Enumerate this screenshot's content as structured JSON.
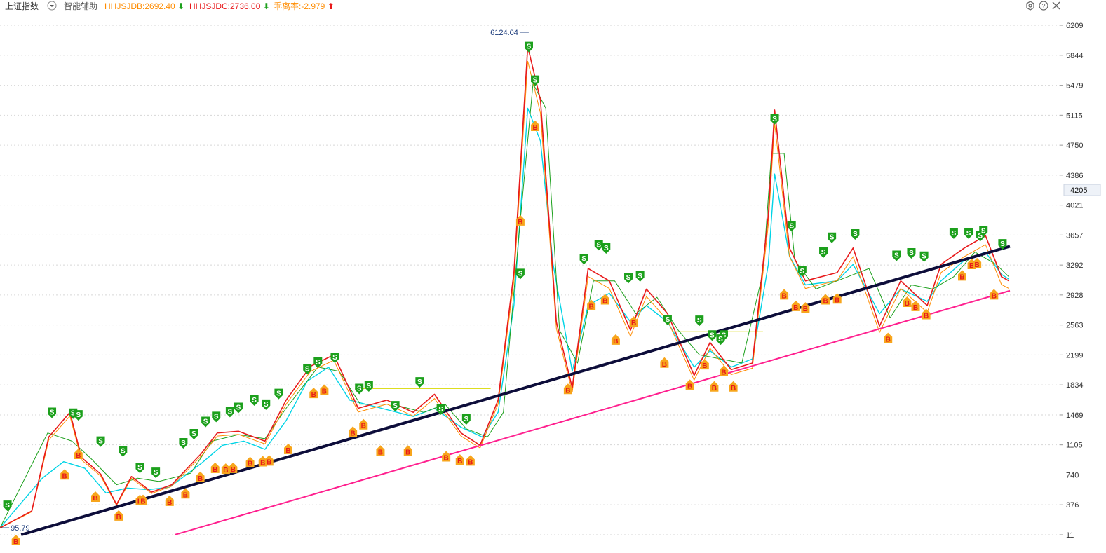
{
  "header": {
    "title": "上证指数",
    "dropdown_icon": "chevron-down-icon",
    "assist_label": "智能辅助",
    "indicators": [
      {
        "name": "HHJSJDB",
        "value": "2692.40",
        "direction": "down",
        "color": "#ff8c00",
        "text": "HHJSJDB:2692.40"
      },
      {
        "name": "HHJSJDC",
        "value": "2736.00",
        "direction": "down",
        "color": "#e8191b",
        "text": "HHJSJDC:2736.00"
      },
      {
        "name": "乖离率",
        "value": "-2.979",
        "direction": "up",
        "color": "#ff8c00",
        "text": "乖离率:-2.979"
      }
    ],
    "arrow_down_color": "#1ca01c",
    "arrow_up_color": "#e8191b",
    "window_icons": [
      "settings-icon",
      "help-icon",
      "close-icon"
    ]
  },
  "chart_data": {
    "type": "line",
    "title": "上证指数",
    "xlabel": "",
    "ylabel": "",
    "ylim": [
      11,
      6209
    ],
    "y_ticks": [
      "6209",
      "5844",
      "5479",
      "5115",
      "4750",
      "4386",
      "4021",
      "3657",
      "3292",
      "2928",
      "2563",
      "2199",
      "1834",
      "1469",
      "1105",
      "740",
      "376",
      "11"
    ],
    "y_tick_values": [
      6209,
      5844,
      5479,
      5115,
      4750,
      4386,
      4021,
      3657,
      3292,
      2928,
      2563,
      2199,
      1834,
      1469,
      1105,
      740,
      376,
      11
    ],
    "current_value_label": "4205",
    "current_value": 4205,
    "grid": true,
    "annotations": [
      {
        "text": "6124.04",
        "x": 0.493,
        "y": 6124.04
      },
      {
        "text": "95.79",
        "x": 0.006,
        "y": 95.79
      }
    ],
    "colors": {
      "price": "#e8191b",
      "low": "#00d4e6",
      "mid": "#ff8c00",
      "envelope": "#1ca01c",
      "support": "#ff1f8e",
      "trend": "#0d0d3a",
      "flat": "#d8d800",
      "grid": "#d6d6d6"
    },
    "series": [
      {
        "values": [
          [
            0.0,
            95.79
          ],
          [
            0.03,
            300
          ],
          [
            0.046,
            1200
          ],
          [
            0.066,
            1500
          ],
          [
            0.077,
            950
          ],
          [
            0.095,
            750
          ],
          [
            0.11,
            380
          ],
          [
            0.124,
            720
          ],
          [
            0.143,
            530
          ],
          [
            0.162,
            620
          ],
          [
            0.19,
            1000
          ],
          [
            0.205,
            1250
          ],
          [
            0.225,
            1270
          ],
          [
            0.25,
            1150
          ],
          [
            0.27,
            1650
          ],
          [
            0.293,
            2060
          ],
          [
            0.315,
            2200
          ],
          [
            0.338,
            1550
          ],
          [
            0.365,
            1650
          ],
          [
            0.39,
            1500
          ],
          [
            0.41,
            1720
          ],
          [
            0.435,
            1250
          ],
          [
            0.453,
            1100
          ],
          [
            0.47,
            1650
          ],
          [
            0.485,
            3200
          ],
          [
            0.498,
            5950
          ],
          [
            0.51,
            5300
          ],
          [
            0.525,
            2600
          ],
          [
            0.54,
            1800
          ],
          [
            0.555,
            3250
          ],
          [
            0.575,
            3100
          ],
          [
            0.595,
            2500
          ],
          [
            0.61,
            3000
          ],
          [
            0.63,
            2700
          ],
          [
            0.655,
            1950
          ],
          [
            0.67,
            2350
          ],
          [
            0.69,
            2020
          ],
          [
            0.71,
            2100
          ],
          [
            0.725,
            3900
          ],
          [
            0.731,
            5178
          ],
          [
            0.745,
            3500
          ],
          [
            0.76,
            3100
          ],
          [
            0.79,
            3200
          ],
          [
            0.805,
            3500
          ],
          [
            0.83,
            2550
          ],
          [
            0.85,
            3100
          ],
          [
            0.875,
            2800
          ],
          [
            0.888,
            3300
          ],
          [
            0.91,
            3500
          ],
          [
            0.93,
            3650
          ],
          [
            0.945,
            3150
          ],
          [
            0.952,
            3100
          ]
        ]
      },
      {
        "values": [
          [
            0.0,
            95.79
          ],
          [
            0.04,
            700
          ],
          [
            0.06,
            900
          ],
          [
            0.08,
            820
          ],
          [
            0.1,
            520
          ],
          [
            0.12,
            580
          ],
          [
            0.14,
            560
          ],
          [
            0.16,
            590
          ],
          [
            0.19,
            880
          ],
          [
            0.21,
            1100
          ],
          [
            0.23,
            1150
          ],
          [
            0.25,
            1050
          ],
          [
            0.27,
            1400
          ],
          [
            0.29,
            1880
          ],
          [
            0.31,
            2050
          ],
          [
            0.33,
            1650
          ],
          [
            0.36,
            1550
          ],
          [
            0.39,
            1450
          ],
          [
            0.41,
            1550
          ],
          [
            0.435,
            1320
          ],
          [
            0.455,
            1200
          ],
          [
            0.47,
            1500
          ],
          [
            0.485,
            2800
          ],
          [
            0.498,
            5200
          ],
          [
            0.51,
            4800
          ],
          [
            0.522,
            3300
          ],
          [
            0.54,
            2000
          ],
          [
            0.555,
            2800
          ],
          [
            0.575,
            2950
          ],
          [
            0.595,
            2600
          ],
          [
            0.61,
            2800
          ],
          [
            0.63,
            2600
          ],
          [
            0.655,
            2050
          ],
          [
            0.67,
            2250
          ],
          [
            0.69,
            2050
          ],
          [
            0.71,
            2150
          ],
          [
            0.725,
            3300
          ],
          [
            0.731,
            4400
          ],
          [
            0.745,
            3400
          ],
          [
            0.76,
            3050
          ],
          [
            0.79,
            3100
          ],
          [
            0.805,
            3300
          ],
          [
            0.83,
            2700
          ],
          [
            0.85,
            3000
          ],
          [
            0.875,
            2850
          ],
          [
            0.888,
            3100
          ],
          [
            0.91,
            3350
          ],
          [
            0.93,
            3450
          ],
          [
            0.945,
            3180
          ],
          [
            0.952,
            3120
          ]
        ]
      },
      {
        "values": [
          [
            0.0,
            95.79
          ],
          [
            0.045,
            1250
          ],
          [
            0.068,
            1150
          ],
          [
            0.085,
            950
          ],
          [
            0.11,
            620
          ],
          [
            0.13,
            700
          ],
          [
            0.15,
            660
          ],
          [
            0.18,
            760
          ],
          [
            0.2,
            1150
          ],
          [
            0.225,
            1230
          ],
          [
            0.25,
            1180
          ],
          [
            0.27,
            1550
          ],
          [
            0.3,
            2050
          ],
          [
            0.32,
            2000
          ],
          [
            0.34,
            1600
          ],
          [
            0.37,
            1600
          ],
          [
            0.4,
            1500
          ],
          [
            0.42,
            1600
          ],
          [
            0.44,
            1300
          ],
          [
            0.46,
            1200
          ],
          [
            0.475,
            1500
          ],
          [
            0.49,
            3700
          ],
          [
            0.503,
            5500
          ],
          [
            0.515,
            5200
          ],
          [
            0.528,
            2500
          ],
          [
            0.545,
            2100
          ],
          [
            0.56,
            3100
          ],
          [
            0.58,
            3100
          ],
          [
            0.6,
            2700
          ],
          [
            0.62,
            2900
          ],
          [
            0.64,
            2500
          ],
          [
            0.66,
            2200
          ],
          [
            0.68,
            2150
          ],
          [
            0.7,
            2100
          ],
          [
            0.72,
            3200
          ],
          [
            0.728,
            4650
          ],
          [
            0.74,
            4650
          ],
          [
            0.75,
            3350
          ],
          [
            0.77,
            3000
          ],
          [
            0.8,
            3150
          ],
          [
            0.82,
            3250
          ],
          [
            0.84,
            2650
          ],
          [
            0.86,
            3050
          ],
          [
            0.88,
            3000
          ],
          [
            0.9,
            3150
          ],
          [
            0.92,
            3450
          ],
          [
            0.94,
            3300
          ],
          [
            0.952,
            3150
          ]
        ]
      }
    ],
    "trend_lines": [
      {
        "name": "",
        "from": [
          0.02,
          11
        ],
        "to": [
          0.953,
          3520
        ]
      },
      {
        "name": "",
        "from": [
          0.165,
          11
        ],
        "to": [
          0.953,
          2980
        ]
      }
    ],
    "signals_sell_label": "S",
    "signals_buy_label": "B",
    "sell_signals": [
      [
        0.007,
        300
      ],
      [
        0.049,
        1430
      ],
      [
        0.069,
        1420
      ],
      [
        0.074,
        1400
      ],
      [
        0.095,
        1080
      ],
      [
        0.116,
        960
      ],
      [
        0.132,
        760
      ],
      [
        0.147,
        700
      ],
      [
        0.173,
        1060
      ],
      [
        0.183,
        1170
      ],
      [
        0.194,
        1320
      ],
      [
        0.204,
        1380
      ],
      [
        0.217,
        1440
      ],
      [
        0.225,
        1490
      ],
      [
        0.24,
        1580
      ],
      [
        0.251,
        1530
      ],
      [
        0.263,
        1660
      ],
      [
        0.29,
        1960
      ],
      [
        0.3,
        2040
      ],
      [
        0.316,
        2100
      ],
      [
        0.339,
        1720
      ],
      [
        0.348,
        1750
      ],
      [
        0.373,
        1510
      ],
      [
        0.396,
        1800
      ],
      [
        0.416,
        1470
      ],
      [
        0.44,
        1350
      ],
      [
        0.491,
        3120
      ],
      [
        0.499,
        5880
      ],
      [
        0.505,
        5470
      ],
      [
        0.551,
        3300
      ],
      [
        0.565,
        3470
      ],
      [
        0.572,
        3430
      ],
      [
        0.593,
        3070
      ],
      [
        0.604,
        3090
      ],
      [
        0.63,
        2560
      ],
      [
        0.66,
        2550
      ],
      [
        0.672,
        2370
      ],
      [
        0.683,
        2370
      ],
      [
        0.68,
        2320
      ],
      [
        0.731,
        5000
      ],
      [
        0.747,
        3700
      ],
      [
        0.757,
        3150
      ],
      [
        0.777,
        3380
      ],
      [
        0.785,
        3560
      ],
      [
        0.807,
        3600
      ],
      [
        0.846,
        3340
      ],
      [
        0.86,
        3370
      ],
      [
        0.872,
        3330
      ],
      [
        0.9,
        3610
      ],
      [
        0.914,
        3610
      ],
      [
        0.925,
        3580
      ],
      [
        0.928,
        3640
      ],
      [
        0.946,
        3480
      ]
    ],
    "buy_signals": [
      [
        0.015,
        11
      ],
      [
        0.061,
        810
      ],
      [
        0.074,
        1060
      ],
      [
        0.09,
        540
      ],
      [
        0.112,
        310
      ],
      [
        0.132,
        500
      ],
      [
        0.135,
        500
      ],
      [
        0.16,
        490
      ],
      [
        0.175,
        580
      ],
      [
        0.189,
        780
      ],
      [
        0.203,
        890
      ],
      [
        0.213,
        880
      ],
      [
        0.22,
        890
      ],
      [
        0.236,
        960
      ],
      [
        0.248,
        970
      ],
      [
        0.254,
        980
      ],
      [
        0.272,
        1120
      ],
      [
        0.296,
        1800
      ],
      [
        0.306,
        1840
      ],
      [
        0.333,
        1330
      ],
      [
        0.343,
        1420
      ],
      [
        0.359,
        1100
      ],
      [
        0.385,
        1100
      ],
      [
        0.421,
        1030
      ],
      [
        0.434,
        990
      ],
      [
        0.444,
        980
      ],
      [
        0.491,
        3900
      ],
      [
        0.505,
        5050
      ],
      [
        0.536,
        1850
      ],
      [
        0.558,
        2870
      ],
      [
        0.571,
        2940
      ],
      [
        0.598,
        2670
      ],
      [
        0.581,
        2450
      ],
      [
        0.627,
        2170
      ],
      [
        0.651,
        1900
      ],
      [
        0.665,
        2150
      ],
      [
        0.674,
        1880
      ],
      [
        0.683,
        2070
      ],
      [
        0.692,
        1880
      ],
      [
        0.74,
        3000
      ],
      [
        0.751,
        2860
      ],
      [
        0.76,
        2840
      ],
      [
        0.779,
        2940
      ],
      [
        0.79,
        2950
      ],
      [
        0.838,
        2470
      ],
      [
        0.856,
        2910
      ],
      [
        0.864,
        2860
      ],
      [
        0.874,
        2760
      ],
      [
        0.908,
        3230
      ],
      [
        0.917,
        3370
      ],
      [
        0.922,
        3380
      ],
      [
        0.938,
        3000
      ]
    ]
  }
}
